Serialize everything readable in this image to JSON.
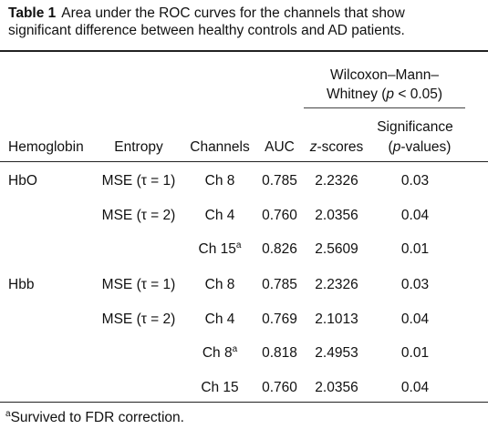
{
  "caption": {
    "label": "Table 1",
    "line1": "Area under the ROC curves for the channels that show",
    "line2": "significant difference between healthy controls and AD patients."
  },
  "header": {
    "group_line1": "Wilcoxon–Mann–",
    "group_line2_prefix": "Whitney (",
    "group_line2_p": "p",
    "group_line2_suffix": " < 0.05)",
    "hemoglobin": "Hemoglobin",
    "entropy": "Entropy",
    "channels": "Channels",
    "auc": "AUC",
    "z_italic": "z",
    "z_rest": "-scores",
    "sig_line1": "Significance",
    "sig_line2_prefix": "(",
    "sig_line2_p": "p",
    "sig_line2_suffix": "-values)"
  },
  "rows": [
    {
      "hemoglobin": "HbO",
      "entropy": "MSE (τ = 1)",
      "channel": "Ch 8",
      "sup": "",
      "auc": "0.785",
      "z": "2.2326",
      "p": "0.03"
    },
    {
      "hemoglobin": "",
      "entropy": "MSE (τ = 2)",
      "channel": "Ch 4",
      "sup": "",
      "auc": "0.760",
      "z": "2.0356",
      "p": "0.04"
    },
    {
      "hemoglobin": "",
      "entropy": "",
      "channel": "Ch 15",
      "sup": "a",
      "auc": "0.826",
      "z": "2.5609",
      "p": "0.01"
    },
    {
      "hemoglobin": "Hbb",
      "entropy": "MSE (τ = 1)",
      "channel": "Ch 8",
      "sup": "",
      "auc": "0.785",
      "z": "2.2326",
      "p": "0.03"
    },
    {
      "hemoglobin": "",
      "entropy": "MSE (τ = 2)",
      "channel": "Ch 4",
      "sup": "",
      "auc": "0.769",
      "z": "2.1013",
      "p": "0.04"
    },
    {
      "hemoglobin": "",
      "entropy": "",
      "channel": "Ch 8",
      "sup": "a",
      "auc": "0.818",
      "z": "2.4953",
      "p": "0.01"
    },
    {
      "hemoglobin": "",
      "entropy": "",
      "channel": "Ch 15",
      "sup": "",
      "auc": "0.760",
      "z": "2.0356",
      "p": "0.04"
    }
  ],
  "footnote": {
    "marker": "a",
    "text": "Survived to FDR correction."
  }
}
